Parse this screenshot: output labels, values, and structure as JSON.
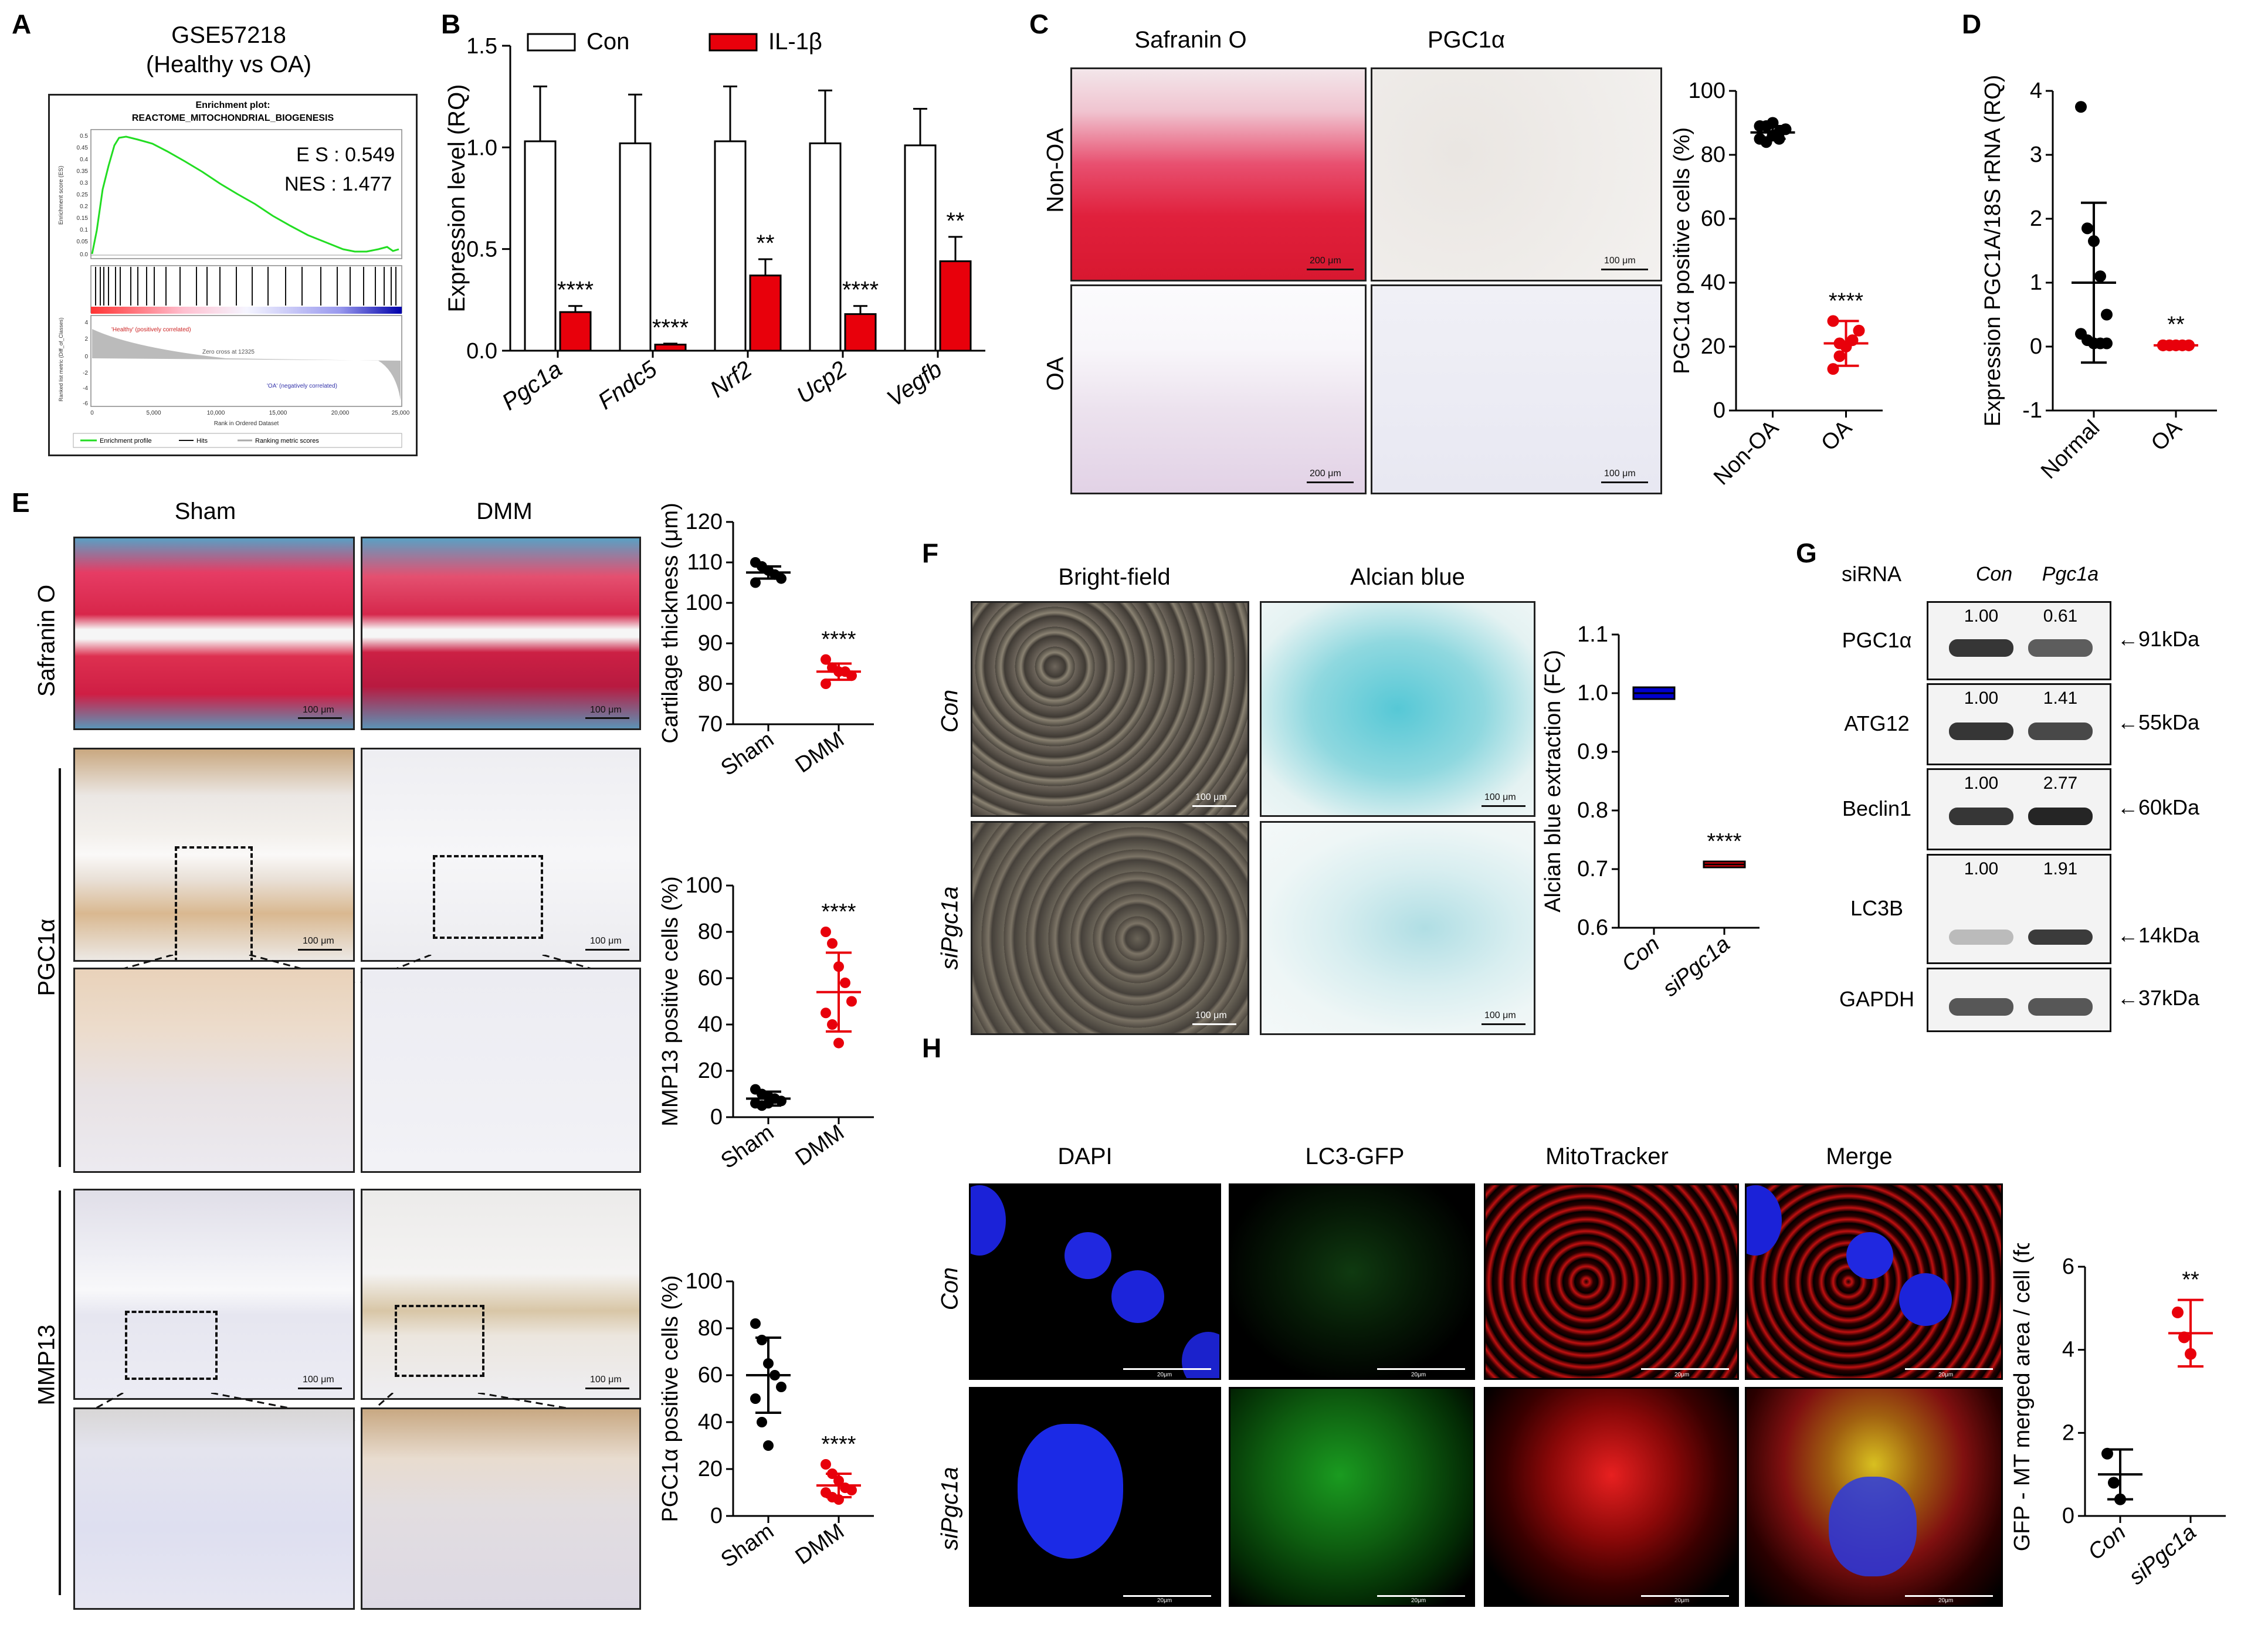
{
  "panels": {
    "A": "A",
    "B": "B",
    "C": "C",
    "D": "D",
    "E": "E",
    "F": "F",
    "G": "G",
    "H": "H"
  },
  "A": {
    "title1": "GSE57218",
    "title2": "(Healthy vs OA)",
    "plot_title1": "Enrichment plot:",
    "plot_title2": "REACTOME_MITOCHONDRIAL_BIOGENESIS",
    "es": "E  S : 0.549",
    "nes": "NES : 1.477",
    "ylabel_top": "Enrichment score (ES)",
    "ylabel_bottom": "Ranked list metric (Diff_of_Classes)",
    "healthy_label": "'Healthy' (positively correlated)",
    "oa_label": "'OA' (negatively correlated)",
    "zero_cross": "Zero cross at 12325",
    "xlabel": "Rank in Ordered Dataset",
    "legend": [
      "Enrichment profile",
      "Hits",
      "Ranking metric scores"
    ],
    "es_ticks": [
      "0.5",
      "0.45",
      "0.4",
      "0.35",
      "0.3",
      "0.25",
      "0.2",
      "0.15",
      "0.1",
      "0.05",
      "0.0"
    ],
    "metric_ticks": [
      "4",
      "2",
      "0",
      "-2",
      "-4",
      "-6"
    ],
    "x_ticks": [
      "0",
      "5,000",
      "10,000",
      "15,000",
      "20,000",
      "25,000"
    ]
  },
  "chart_data": [
    {
      "id": "B",
      "type": "bar",
      "categories": [
        "Pgc1a",
        "Fndc5",
        "Nrf2",
        "Ucp2",
        "Vegfb"
      ],
      "series": [
        {
          "name": "Con",
          "color": "#ffffff",
          "values": [
            1.03,
            1.02,
            1.03,
            1.02,
            1.01
          ],
          "errors": [
            0.27,
            0.24,
            0.27,
            0.26,
            0.18
          ]
        },
        {
          "name": "IL-1β",
          "color": "#e8000b",
          "values": [
            0.19,
            0.03,
            0.37,
            0.18,
            0.44
          ],
          "errors": [
            0.03,
            0.005,
            0.08,
            0.04,
            0.12
          ]
        }
      ],
      "significance": [
        "****",
        "****",
        "**",
        "****",
        "**"
      ],
      "ylabel": "Expression level (RQ)",
      "ylim": [
        0,
        1.5
      ],
      "yticks": [
        "0.0",
        "0.5",
        "1.0",
        "1.5"
      ]
    },
    {
      "id": "C",
      "type": "scatter",
      "categories": [
        "Non-OA",
        "OA"
      ],
      "values": [
        [
          85,
          84,
          86,
          87,
          88,
          89,
          89,
          90,
          85
        ],
        [
          13,
          17,
          20,
          22,
          25,
          28,
          21
        ]
      ],
      "means": [
        87,
        21
      ],
      "sd": [
        2,
        7
      ],
      "colors": [
        "#000000",
        "#e8000b"
      ],
      "significance": "****",
      "ylabel": "PGC1α  positive cells  (%)",
      "ylim": [
        0,
        100
      ],
      "yticks": [
        "0",
        "20",
        "40",
        "60",
        "80",
        "100"
      ]
    },
    {
      "id": "D",
      "type": "scatter",
      "categories": [
        "Normal",
        "OA"
      ],
      "values": [
        [
          3.75,
          1.85,
          1.65,
          1.1,
          0.5,
          0.2,
          0.1,
          0.05,
          0.05,
          0.05
        ],
        [
          0.02,
          0.02,
          0.02,
          0.02,
          0.02,
          0.02,
          0.02,
          0.02,
          0.02,
          0.02,
          0.02,
          0.02
        ]
      ],
      "means": [
        1.0,
        0.02
      ],
      "sd": [
        1.25,
        0.01
      ],
      "colors": [
        "#000000",
        "#e8000b"
      ],
      "significance": "**",
      "ylabel": "Expression PGC1A/18S rRNA (RQ)",
      "ylim": [
        -1,
        4
      ],
      "yticks": [
        "-1",
        "0",
        "1",
        "2",
        "3",
        "4"
      ]
    },
    {
      "id": "E1",
      "type": "scatter",
      "categories": [
        "Sham",
        "DMM"
      ],
      "values": [
        [
          110,
          109,
          108,
          107,
          106,
          105
        ],
        [
          86,
          84,
          83,
          83,
          82,
          80
        ]
      ],
      "means": [
        107.5,
        83
      ],
      "sd": [
        1.5,
        2
      ],
      "colors": [
        "#000000",
        "#e8000b"
      ],
      "significance": "****",
      "ylabel": "Cartilage thickness  (μm)",
      "ylim": [
        70,
        120
      ],
      "yticks": [
        "70",
        "80",
        "90",
        "100",
        "110",
        "120"
      ]
    },
    {
      "id": "E2",
      "type": "scatter",
      "categories": [
        "Sham",
        "DMM"
      ],
      "values": [
        [
          12,
          10,
          9,
          8,
          7,
          6,
          5,
          6
        ],
        [
          80,
          75,
          65,
          58,
          50,
          45,
          40,
          32
        ]
      ],
      "means": [
        8,
        54
      ],
      "sd": [
        3,
        17
      ],
      "colors": [
        "#000000",
        "#e8000b"
      ],
      "significance": "****",
      "ylabel": "MMP13  positive cells  (%)",
      "ylim": [
        0,
        100
      ],
      "yticks": [
        "0",
        "20",
        "40",
        "60",
        "80",
        "100"
      ]
    },
    {
      "id": "E3",
      "type": "scatter",
      "categories": [
        "Sham",
        "DMM"
      ],
      "values": [
        [
          82,
          75,
          65,
          60,
          55,
          50,
          40,
          30
        ],
        [
          22,
          18,
          15,
          12,
          11,
          10,
          8,
          7
        ]
      ],
      "means": [
        60,
        13
      ],
      "sd": [
        16,
        5
      ],
      "colors": [
        "#000000",
        "#e8000b"
      ],
      "significance": "****",
      "ylabel": "PGC1α  positive cells  (%)",
      "ylim": [
        0,
        100
      ],
      "yticks": [
        "0",
        "20",
        "40",
        "60",
        "80",
        "100"
      ]
    },
    {
      "id": "F",
      "type": "box",
      "categories": [
        "Con",
        "siPgc1a"
      ],
      "values": [
        [
          0.99,
          1.0,
          1.01
        ],
        [
          0.703,
          0.708,
          0.713
        ]
      ],
      "colors": [
        "#0000cc",
        "#e8000b"
      ],
      "significance": "****",
      "ylabel": "Alcian blue extraction (FC)",
      "ylim": [
        0.6,
        1.1
      ],
      "yticks": [
        "0.6",
        "0.7",
        "0.8",
        "0.9",
        "1.0",
        "1.1"
      ]
    },
    {
      "id": "H",
      "type": "scatter",
      "categories": [
        "Con",
        "siPgc1a"
      ],
      "values": [
        [
          1.5,
          0.8,
          0.4
        ],
        [
          4.9,
          4.3,
          3.9
        ]
      ],
      "means": [
        1.0,
        4.4
      ],
      "sd": [
        0.6,
        0.8
      ],
      "colors": [
        "#000000",
        "#e8000b"
      ],
      "significance": "**",
      "ylabel": "GFP - MT merged area / cell (fc)",
      "ylim": [
        0,
        6
      ],
      "yticks": [
        "0",
        "2",
        "4",
        "6"
      ]
    }
  ],
  "C": {
    "col_headers": [
      "Safranin O",
      "PGC1α"
    ],
    "row_labels": [
      "Non-OA",
      "OA"
    ],
    "scalebars": [
      "200 μm",
      "100 μm",
      "200 μm",
      "100 μm"
    ]
  },
  "E": {
    "col_headers": [
      "Sham",
      "DMM"
    ],
    "row_labels": [
      "Safranin O",
      "PGC1α",
      "MMP13"
    ],
    "scalebar": "100 μm"
  },
  "F": {
    "col_headers": [
      "Bright-field",
      "Alcian blue"
    ],
    "row_labels": [
      "Con",
      "siPgc1a"
    ],
    "scalebar": "100 μm"
  },
  "G": {
    "header_label": "siRNA",
    "lanes": [
      "Con",
      "Pgc1a"
    ],
    "blots": [
      {
        "name": "PGC1α",
        "values": [
          "1.00",
          "0.61"
        ],
        "mw": "91kDa"
      },
      {
        "name": "ATG12",
        "values": [
          "1.00",
          "1.41"
        ],
        "mw": "55kDa"
      },
      {
        "name": "Beclin1",
        "values": [
          "1.00",
          "2.77"
        ],
        "mw": "60kDa"
      },
      {
        "name": "LC3B",
        "values": [
          "1.00",
          "1.91"
        ],
        "mw": "14kDa"
      },
      {
        "name": "GAPDH",
        "values": [
          "",
          ""
        ],
        "mw": "37kDa"
      }
    ],
    "arrow": "←"
  },
  "H": {
    "col_headers": [
      "DAPI",
      "LC3-GFP",
      "MitoTracker",
      "Merge"
    ],
    "row_labels": [
      "Con",
      "siPgc1a"
    ],
    "scalebar": "20μm"
  }
}
